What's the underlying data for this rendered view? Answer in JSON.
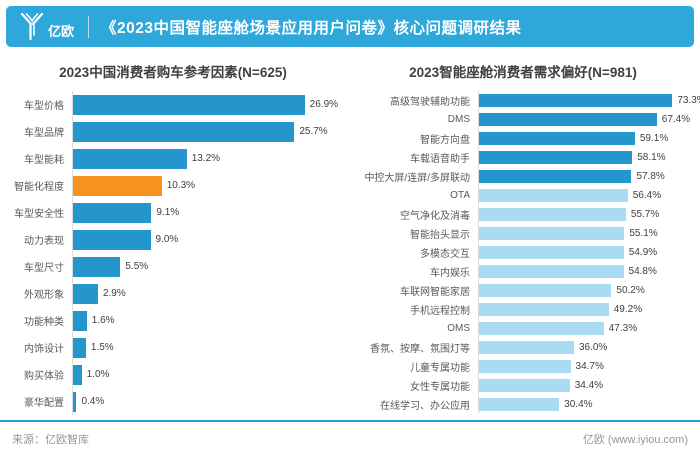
{
  "header": {
    "logo_text": "亿欧",
    "title": "《2023中国智能座舱场景应用用户问卷》核心问题调研结果"
  },
  "colors": {
    "header_bg": "#2EA7DB",
    "bar_blue": "#2596CB",
    "bar_orange": "#F6921E",
    "bar_light_blue": "#A9DBF2",
    "divider_blue": "#2B9CD6"
  },
  "chart_data": [
    {
      "type": "bar",
      "orientation": "horizontal",
      "title": "2023中国消费者购车参考因素(N=625)",
      "categories": [
        "车型价格",
        "车型品牌",
        "车型能耗",
        "智能化程度",
        "车型安全性",
        "动力表现",
        "车型尺寸",
        "外观形象",
        "功能种类",
        "内饰设计",
        "购买体验",
        "豪华配置"
      ],
      "values": [
        26.9,
        25.7,
        13.2,
        10.3,
        9.1,
        9.0,
        5.5,
        2.9,
        1.6,
        1.5,
        1.0,
        0.4
      ],
      "value_suffix": "%",
      "highlight_index": 3,
      "xlim": [
        0,
        31
      ],
      "grid": false,
      "legend": false
    },
    {
      "type": "bar",
      "orientation": "horizontal",
      "title": "2023智能座舱消费者需求偏好(N=981)",
      "categories": [
        "高级驾驶辅助功能",
        "DMS",
        "智能方向盘",
        "车载语音助手",
        "中控大屏/连屏/多屏联动",
        "OTA",
        "空气净化及消毒",
        "智能抬头显示",
        "多模态交互",
        "车内娱乐",
        "车联网智能家居",
        "手机远程控制",
        "OMS",
        "香氛、按摩、氛围灯等",
        "儿童专属功能",
        "女性专属功能",
        "在线学习、办公应用"
      ],
      "values": [
        73.3,
        67.4,
        59.1,
        58.1,
        57.8,
        56.4,
        55.7,
        55.1,
        54.9,
        54.8,
        50.2,
        49.2,
        47.3,
        36.0,
        34.7,
        34.4,
        30.4
      ],
      "value_suffix": "%",
      "dark_count": 5,
      "xlim": [
        0,
        80
      ],
      "grid": false,
      "legend": false
    }
  ],
  "footer": {
    "source": "来源：亿欧智库",
    "brand": "亿欧 (www.iyiou.com)"
  }
}
